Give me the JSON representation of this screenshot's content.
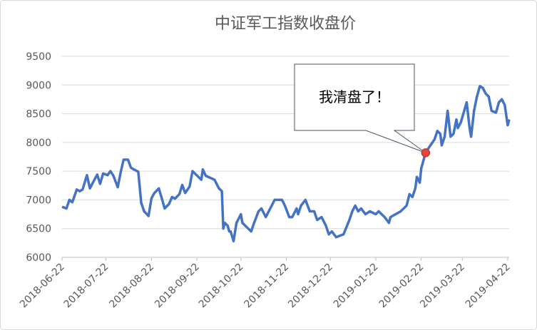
{
  "chart_data": {
    "type": "line",
    "title": "中证军工指数收盘价",
    "x": [
      "2018-06-22",
      "2018-06-25",
      "2018-06-27",
      "2018-06-29",
      "2018-07-02",
      "2018-07-04",
      "2018-07-06",
      "2018-07-09",
      "2018-07-11",
      "2018-07-13",
      "2018-07-16",
      "2018-07-18",
      "2018-07-20",
      "2018-07-23",
      "2018-07-25",
      "2018-07-27",
      "2018-07-30",
      "2018-08-01",
      "2018-08-03",
      "2018-08-06",
      "2018-08-08",
      "2018-08-10",
      "2018-08-13",
      "2018-08-15",
      "2018-08-17",
      "2018-08-20",
      "2018-08-22",
      "2018-08-24",
      "2018-08-27",
      "2018-08-29",
      "2018-08-31",
      "2018-09-03",
      "2018-09-05",
      "2018-09-07",
      "2018-09-10",
      "2018-09-12",
      "2018-09-14",
      "2018-09-17",
      "2018-09-19",
      "2018-09-21",
      "2018-09-25",
      "2018-09-26",
      "2018-09-28",
      "2018-10-04",
      "2018-10-07",
      "2018-10-09",
      "2018-10-10",
      "2018-10-11",
      "2018-10-13",
      "2018-10-14",
      "2018-10-15",
      "2018-10-17",
      "2018-10-19",
      "2018-10-22",
      "2018-10-23",
      "2018-10-27",
      "2018-10-29",
      "2018-10-31",
      "2018-11-03",
      "2018-11-05",
      "2018-11-08",
      "2018-11-11",
      "2018-11-14",
      "2018-11-19",
      "2018-11-21",
      "2018-11-24",
      "2018-11-26",
      "2018-11-29",
      "2018-11-30",
      "2018-12-02",
      "2018-12-05",
      "2018-12-08",
      "2018-12-11",
      "2018-12-13",
      "2018-12-16",
      "2018-12-19",
      "2018-12-21",
      "2018-12-23",
      "2018-12-26",
      "2018-12-31",
      "2019-01-04",
      "2019-01-06",
      "2019-01-08",
      "2019-01-10",
      "2019-01-12",
      "2019-01-15",
      "2019-01-18",
      "2019-01-22",
      "2019-01-24",
      "2019-01-28",
      "2019-01-31",
      "2019-02-01",
      "2019-02-08",
      "2019-02-12",
      "2019-02-14",
      "2019-02-16",
      "2019-02-18",
      "2019-02-19",
      "2019-02-21",
      "2019-02-22",
      "2019-02-25",
      "2019-02-27",
      "2019-03-03",
      "2019-03-05",
      "2019-03-07",
      "2019-03-08",
      "2019-03-10",
      "2019-03-12",
      "2019-03-14",
      "2019-03-16",
      "2019-03-18",
      "2019-03-19",
      "2019-03-21",
      "2019-03-25",
      "2019-03-27",
      "2019-03-28",
      "2019-03-30",
      "2019-04-01",
      "2019-04-03",
      "2019-04-05",
      "2019-04-07",
      "2019-04-09",
      "2019-04-11",
      "2019-04-14",
      "2019-04-16",
      "2019-04-18",
      "2019-04-20",
      "2019-04-22",
      "2019-04-23"
    ],
    "series": [
      {
        "color": "#4472c4",
        "values": [
          6880,
          6850,
          7000,
          6960,
          7180,
          7150,
          7180,
          7430,
          7200,
          7300,
          7440,
          7280,
          7460,
          7430,
          7500,
          7420,
          7220,
          7480,
          7700,
          7700,
          7560,
          7530,
          7490,
          6950,
          6800,
          6720,
          7030,
          7120,
          7200,
          7030,
          6850,
          6930,
          7050,
          7020,
          7100,
          7260,
          7120,
          7230,
          7500,
          7450,
          7350,
          7530,
          7420,
          7350,
          7200,
          7150,
          6500,
          6600,
          6550,
          6450,
          6450,
          6280,
          6600,
          6750,
          6600,
          6500,
          6450,
          6600,
          6800,
          6850,
          6700,
          6850,
          7000,
          7000,
          6900,
          6700,
          6700,
          6850,
          6750,
          6900,
          7000,
          6800,
          6800,
          6650,
          6700,
          6550,
          6400,
          6450,
          6350,
          6400,
          6650,
          6800,
          6900,
          6800,
          6850,
          6750,
          6800,
          6750,
          6800,
          6700,
          6600,
          6700,
          6800,
          6900,
          7100,
          7050,
          7200,
          7400,
          7300,
          7550,
          7820,
          7900,
          8050,
          8200,
          8150,
          7950,
          8100,
          8550,
          8100,
          8150,
          8400,
          8250,
          8350,
          8700,
          8250,
          8100,
          8550,
          8800,
          8980,
          8950,
          8850,
          8800,
          8550,
          8520,
          8700,
          8750,
          8650,
          8300,
          8400
        ]
      }
    ],
    "xlim": [
      "2018-06-22",
      "2019-04-23"
    ],
    "xticks": [
      "2018-06-22",
      "2018-07-22",
      "2018-08-22",
      "2018-09-22",
      "2018-10-22",
      "2018-11-22",
      "2018-12-22",
      "2019-01-22",
      "2019-02-22",
      "2019-03-22",
      "2019-04-22"
    ],
    "ylim": [
      6000,
      9500
    ],
    "yticks": [
      6000,
      6500,
      7000,
      7500,
      8000,
      8500,
      9000,
      9500
    ],
    "grid": true,
    "annotation": {
      "text": "我清盘了！",
      "x": "2019-02-25",
      "marker_color": "#e8453c"
    }
  }
}
